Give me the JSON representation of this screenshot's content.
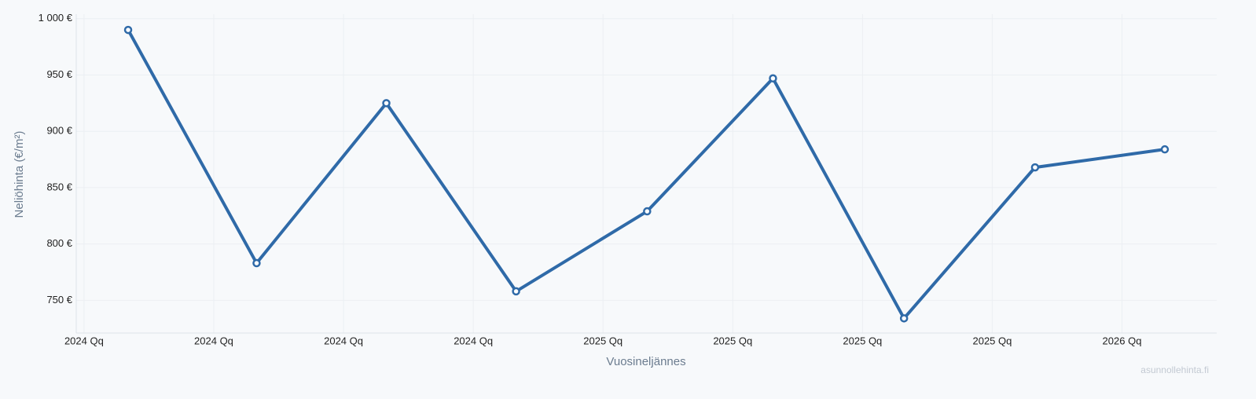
{
  "chart_data": {
    "type": "line",
    "x_label": "Vuosineljännes",
    "y_label": "Neliöhinta (€/m²)",
    "watermark": "asunnollehinta.fi",
    "x": [
      0.34,
      1.33,
      2.33,
      3.33,
      4.34,
      5.31,
      6.32,
      7.33,
      8.33
    ],
    "series": [
      {
        "color": "#2f6aa8",
        "values": [
          990,
          783,
          925,
          758,
          829,
          947,
          734,
          868,
          884
        ]
      }
    ],
    "xlim": [
      -0.06,
      8.73
    ],
    "xticks": [
      {
        "value": 0,
        "label": "2024 Qq"
      },
      {
        "value": 1,
        "label": "2024 Qq"
      },
      {
        "value": 2,
        "label": "2024 Qq"
      },
      {
        "value": 3,
        "label": "2024 Qq"
      },
      {
        "value": 4,
        "label": "2025 Qq"
      },
      {
        "value": 5,
        "label": "2025 Qq"
      },
      {
        "value": 6,
        "label": "2025 Qq"
      },
      {
        "value": 7,
        "label": "2025 Qq"
      },
      {
        "value": 8,
        "label": "2026 Qq"
      }
    ],
    "ylim": [
      721,
      1004
    ],
    "yticks": [
      {
        "value": 750,
        "label": "750 €"
      },
      {
        "value": 800,
        "label": "800 €"
      },
      {
        "value": 850,
        "label": "850 €"
      },
      {
        "value": 900,
        "label": "900 €"
      },
      {
        "value": 950,
        "label": "950 €"
      },
      {
        "value": 1000,
        "label": "1 000 €"
      }
    ],
    "grid": true
  }
}
